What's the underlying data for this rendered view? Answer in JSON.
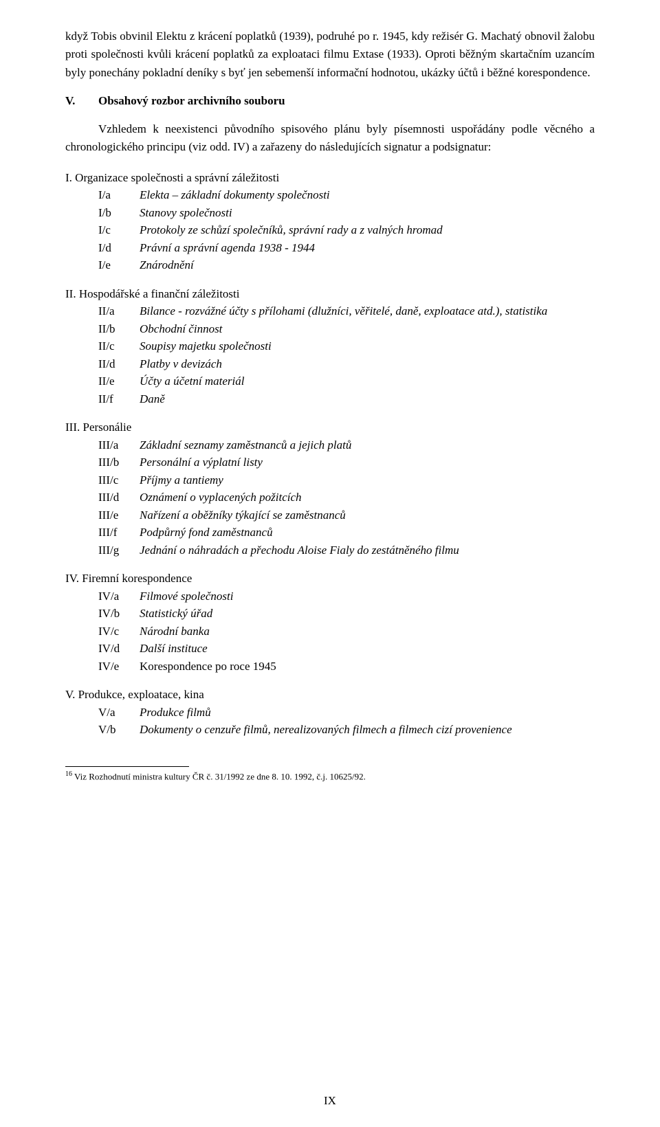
{
  "paragraph1": "když Tobis obvinil Elektu z krácení poplatků (1939), podruhé po r. 1945, kdy režisér G. Machatý obnovil žalobu proti společnosti kvůli krácení poplatků za exploataci filmu Extase (1933). Oproti běžným skartačním uzancím byly ponechány pokladní deníky s byť jen sebemenší informační hodnotou, ukázky účtů i běžné korespondence.",
  "sectionV": {
    "num": "V.",
    "title": "Obsahový rozbor archivního souboru"
  },
  "paragraph2": "Vzhledem k neexistenci původního spisového plánu byly písemnosti uspořádány podle věcného a chronologického principu (viz odd. IV) a zařazeny do následujících signatur a podsignatur:",
  "groups": [
    {
      "title": "I. Organizace společnosti a správní záležitosti",
      "items": [
        {
          "code": "I/a",
          "text": "Elekta – základní dokumenty společnosti"
        },
        {
          "code": "I/b",
          "text": "Stanovy společnosti",
          "uprightPrefix": "St"
        },
        {
          "code": "I/c",
          "text": "Protokoly ze schůzí společníků, správní rady a z valných hromad"
        },
        {
          "code": "I/d",
          "text": "Právní a správní agenda 1938 - 1944",
          "uprightSuffix": "1944"
        },
        {
          "code": "I/e",
          "text": "Znárodnění"
        }
      ]
    },
    {
      "title": "II. Hospodářské a finanční záležitosti",
      "items": [
        {
          "code": "II/a",
          "text": "Bilance - rozvážné účty s přílohami (dlužníci, věřitelé, daně, exploatace atd.), statistika",
          "uprightPrefix": "Bilance - ",
          "uprightTail": "exploatace atd.), statistika"
        },
        {
          "code": "II/b",
          "text": "Obchodní činnost"
        },
        {
          "code": "II/c",
          "text": "Soupisy majetku společnosti"
        },
        {
          "code": "II/d",
          "text": "Platby v devizách"
        },
        {
          "code": "II/e",
          "text": "Účty a účetní materiál"
        },
        {
          "code": "II/f",
          "text": "Daně"
        }
      ]
    },
    {
      "title": "III. Personálie",
      "items": [
        {
          "code": "III/a",
          "text": "Základní seznamy zaměstnanců a jejich platů"
        },
        {
          "code": "III/b",
          "text": "Personální a výplatní listy"
        },
        {
          "code": "III/c",
          "text": "Příjmy a tantiemy",
          "uprightSuffix": "ntiemy"
        },
        {
          "code": "III/d",
          "text": "Oznámení o vyplacených požitcích"
        },
        {
          "code": "III/e",
          "text": "Nařízení a oběžníky týkající se zaměstnanců"
        },
        {
          "code": "III/f",
          "text": "Podpůrný fond zaměstnanců"
        },
        {
          "code": "III/g",
          "text": "Jednání o náhradách a přechodu Aloise Fialy do zestátněného filmu",
          "uprightSuffix": "filmu"
        }
      ]
    },
    {
      "title": "IV. Firemní korespondence",
      "items": [
        {
          "code": "IV/a",
          "text": "Filmové společnosti"
        },
        {
          "code": "IV/b",
          "text": "Statistický úřad"
        },
        {
          "code": "IV/c",
          "text": "Národní banka"
        },
        {
          "code": "IV/d",
          "text": "Další instituce"
        },
        {
          "code": "IV/e",
          "text": "Korespondence po roce 1945",
          "allUpright": true
        }
      ]
    },
    {
      "title": "V. Produkce, exploatace, kina",
      "items": [
        {
          "code": "V/a",
          "text": "Produkce filmů"
        },
        {
          "code": "V/b",
          "text": "Dokumenty o cenzuře filmů, nerealizovaných filmech a filmech cizí provenience"
        }
      ]
    }
  ],
  "footnote": {
    "num": "16",
    "text": "Viz Rozhodnutí ministra kultury ČR č. 31/1992 ze dne 8. 10. 1992, č.j. 10625/92."
  },
  "pageNumber": "IX"
}
